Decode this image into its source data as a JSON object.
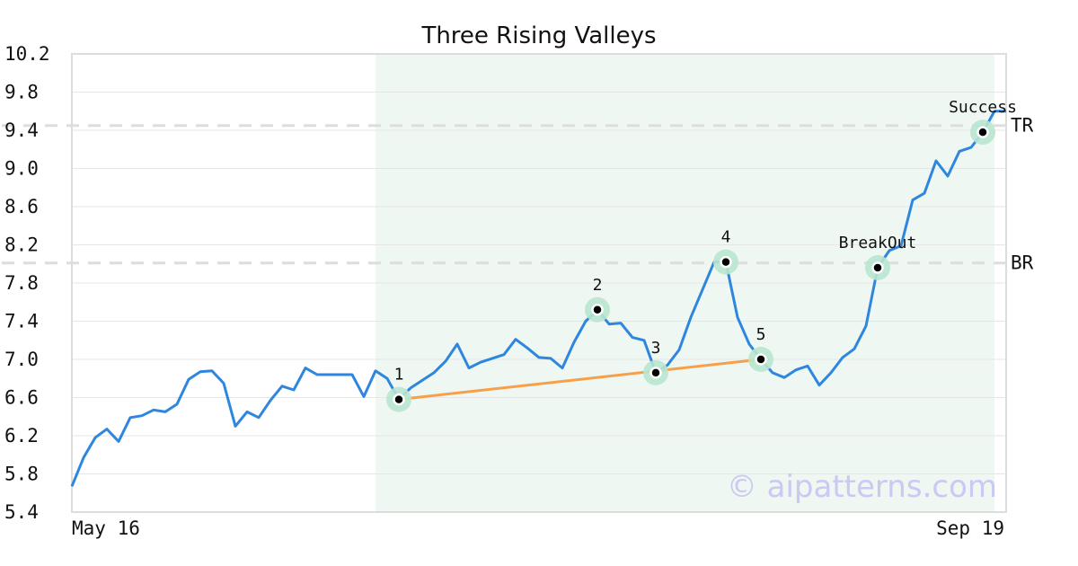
{
  "chart_data": {
    "type": "line",
    "title": "Three Rising Valleys",
    "xlabel": "",
    "ylabel": "",
    "x_start_label": "May 16",
    "x_end_label": "Sep 19",
    "ylim": [
      5.4,
      10.2
    ],
    "yticks": [
      "5.4",
      "5.8",
      "6.2",
      "6.6",
      "7.0",
      "7.4",
      "7.8",
      "8.2",
      "8.6",
      "9.0",
      "9.4",
      "9.8",
      "10.2"
    ],
    "grid": true,
    "series": [
      {
        "values": [
          5.67,
          5.97,
          6.18,
          6.27,
          6.14,
          6.39,
          6.41,
          6.47,
          6.45,
          6.53,
          6.79,
          6.87,
          6.88,
          6.75,
          6.3,
          6.45,
          6.39,
          6.57,
          6.72,
          6.68,
          6.91,
          6.84,
          6.84,
          6.84,
          6.84,
          6.61,
          6.88,
          6.8,
          6.58,
          6.7,
          6.78,
          6.86,
          6.98,
          7.16,
          6.91,
          6.97,
          7.01,
          7.05,
          7.21,
          7.12,
          7.02,
          7.01,
          6.91,
          7.18,
          7.4,
          7.52,
          7.37,
          7.38,
          7.23,
          7.2,
          6.86,
          6.94,
          7.1,
          7.44,
          7.73,
          8.02,
          8.02,
          7.44,
          7.16,
          7.0,
          6.86,
          6.81,
          6.89,
          6.93,
          6.73,
          6.86,
          7.02,
          7.11,
          7.35,
          7.96,
          8.14,
          8.19,
          8.67,
          8.74,
          9.08,
          8.92,
          9.18,
          9.22,
          9.38,
          9.6,
          9.6
        ]
      }
    ],
    "highlight_range": [
      26,
      79
    ],
    "levels": [
      {
        "label": "TR",
        "value": 9.45
      },
      {
        "label": "BR",
        "value": 8.01
      }
    ],
    "markers": [
      {
        "label": "1",
        "index": 28,
        "value": 6.58
      },
      {
        "label": "2",
        "index": 45,
        "value": 7.52
      },
      {
        "label": "3",
        "index": 50,
        "value": 6.86
      },
      {
        "label": "4",
        "index": 56,
        "value": 8.02
      },
      {
        "label": "5",
        "index": 59,
        "value": 7.0
      },
      {
        "label": "BreakOut",
        "index": 69,
        "value": 7.96
      },
      {
        "label": "Success",
        "index": 78,
        "value": 9.38
      }
    ],
    "trendline": {
      "from_marker": "1",
      "to_marker": "5"
    },
    "colors": {
      "line": "#2e86de",
      "trend": "#f7a04a",
      "highlight": "#eef7f2",
      "marker_halo": "#b8e6cf",
      "level": "#dddddd"
    }
  },
  "watermark": "© aipatterns.com"
}
